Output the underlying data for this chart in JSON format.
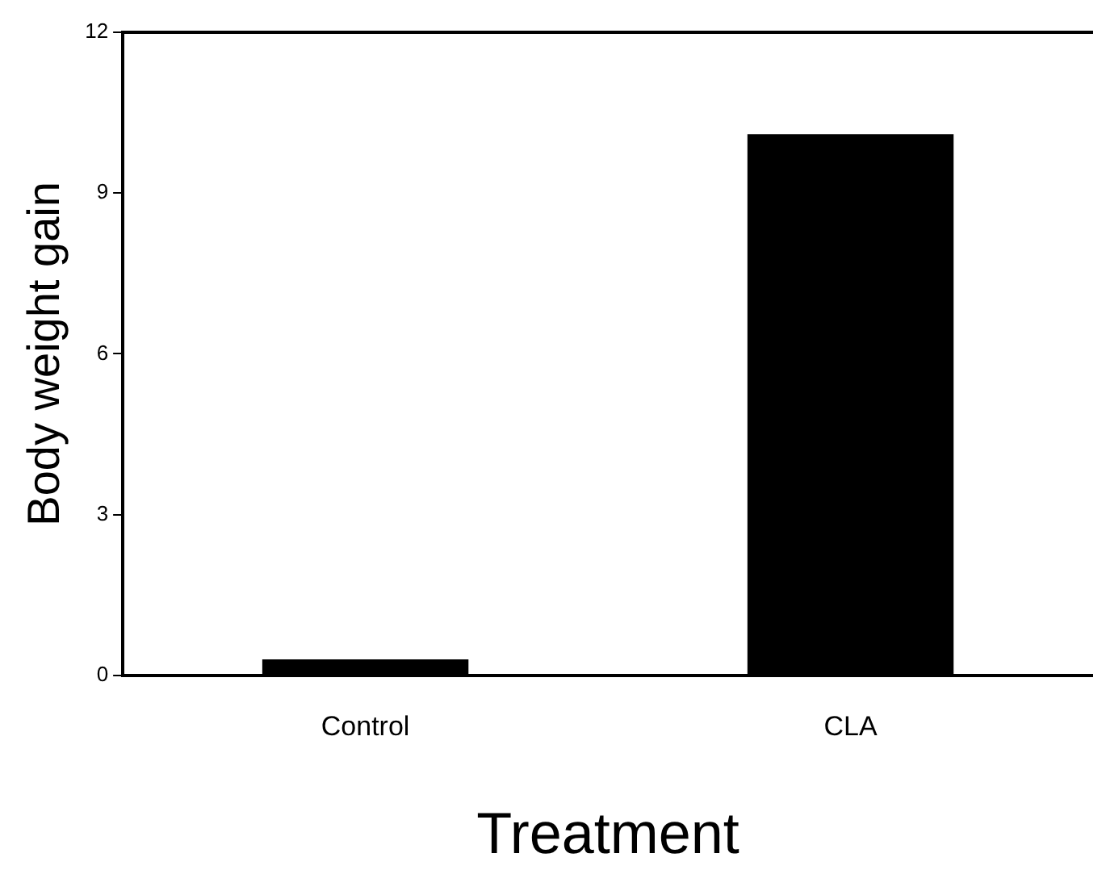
{
  "chart_data": {
    "type": "bar",
    "xlabel": "Treatment",
    "ylabel": "Body weight gain",
    "categories": [
      "Control",
      "CLA"
    ],
    "values": [
      0.3,
      10.1
    ],
    "color": "#000000",
    "ylim": [
      0,
      12
    ],
    "yticks": [
      0,
      3,
      6,
      9,
      12
    ],
    "grid": false,
    "legend": false
  }
}
